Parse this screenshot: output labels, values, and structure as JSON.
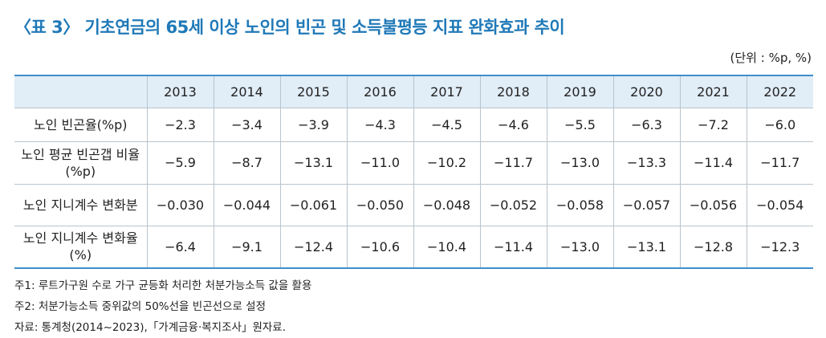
{
  "header": {
    "title": "〈표 3〉 기초연금의 65세 이상 노인의 빈곤 및 소득불평등 지표 완화효과 추이",
    "unit": "(단위 : %p, %)"
  },
  "table": {
    "columns": [
      "2013",
      "2014",
      "2015",
      "2016",
      "2017",
      "2018",
      "2019",
      "2020",
      "2021",
      "2022"
    ],
    "rows": [
      {
        "label": "노인 빈곤율(%p)",
        "cells": [
          "−2.3",
          "−3.4",
          "−3.9",
          "−4.3",
          "−4.5",
          "−4.6",
          "−5.5",
          "−6.3",
          "−7.2",
          "−6.0"
        ]
      },
      {
        "label": "노인 평균 빈곤갭 비율(%p)",
        "cells": [
          "−5.9",
          "−8.7",
          "−13.1",
          "−11.0",
          "−10.2",
          "−11.7",
          "−13.0",
          "−13.3",
          "−11.4",
          "−11.7"
        ]
      },
      {
        "label": "노인 지니계수 변화분",
        "cells": [
          "−0.030",
          "−0.044",
          "−0.061",
          "−0.050",
          "−0.048",
          "−0.052",
          "−0.058",
          "−0.057",
          "−0.056",
          "−0.054"
        ]
      },
      {
        "label": "노인 지니계수 변화율(%)",
        "cells": [
          "−6.4",
          "−9.1",
          "−12.4",
          "−10.6",
          "−10.4",
          "−11.4",
          "−13.0",
          "−13.1",
          "−12.8",
          "−12.3"
        ]
      }
    ]
  },
  "notes": [
    "주1: 루트가구원 수로 가구 균등화 처리한 처분가능소득 값을 활용",
    "주2: 처분가능소득 중위값의 50%선을 빈곤선으로 설정",
    "자료: 통계청(2014~2023),「가계금융·복지조사」원자료."
  ]
}
